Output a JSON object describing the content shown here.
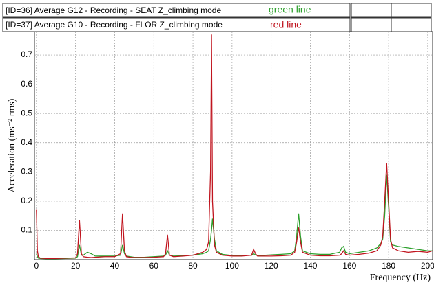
{
  "chart_data": {
    "type": "line",
    "xlabel": "Frequency (Hz)",
    "ylabel": "Acceleration (ms⁻² rms)",
    "grid": true,
    "xlim": [
      -1,
      202.5
    ],
    "xticks": [
      0,
      20,
      40,
      60,
      80,
      100,
      120,
      140,
      160,
      180,
      200
    ],
    "ylim": [
      0,
      0.78
    ],
    "yticks": [
      0.1,
      0.2,
      0.3,
      0.4,
      0.5,
      0.6,
      0.7
    ],
    "x": [
      0,
      0.5,
      1,
      2,
      5,
      10,
      15,
      20,
      21,
      22,
      23,
      24,
      26,
      28,
      30,
      35,
      40,
      43,
      44,
      45,
      46,
      48,
      50,
      55,
      60,
      65,
      66,
      67,
      68,
      70,
      75,
      80,
      85,
      87,
      88,
      89,
      89.5,
      90,
      91,
      92,
      95,
      100,
      105,
      110,
      111,
      112,
      113,
      115,
      120,
      125,
      130,
      132,
      133,
      134,
      135,
      136,
      140,
      145,
      150,
      155,
      156,
      157,
      158,
      160,
      165,
      170,
      174,
      176,
      177,
      178,
      179,
      180,
      181,
      182,
      185,
      190,
      195,
      200,
      202.5
    ],
    "series": [
      {
        "name": "[ID=36] Average G12  - Recording - SEAT Z_climbing mode",
        "line_label": "green line",
        "color": "#2ca02c",
        "values": [
          0.02,
          0.01,
          0.005,
          0.004,
          0.003,
          0.003,
          0.004,
          0.005,
          0.01,
          0.05,
          0.015,
          0.015,
          0.025,
          0.02,
          0.012,
          0.012,
          0.012,
          0.015,
          0.05,
          0.02,
          0.012,
          0.01,
          0.008,
          0.008,
          0.01,
          0.012,
          0.015,
          0.03,
          0.015,
          0.012,
          0.013,
          0.015,
          0.02,
          0.025,
          0.03,
          0.07,
          0.1,
          0.14,
          0.07,
          0.03,
          0.018,
          0.014,
          0.014,
          0.015,
          0.02,
          0.016,
          0.014,
          0.014,
          0.016,
          0.018,
          0.02,
          0.03,
          0.08,
          0.158,
          0.08,
          0.03,
          0.02,
          0.018,
          0.018,
          0.025,
          0.04,
          0.045,
          0.025,
          0.02,
          0.025,
          0.03,
          0.04,
          0.055,
          0.07,
          0.15,
          0.29,
          0.18,
          0.06,
          0.05,
          0.045,
          0.04,
          0.035,
          0.03,
          0.03
        ]
      },
      {
        "name": "[ID=37] Average G10  - Recording - FLOR Z_climbing mode",
        "line_label": "red line",
        "color": "#c0141e",
        "values": [
          0.17,
          0.03,
          0.01,
          0.005,
          0.004,
          0.004,
          0.005,
          0.006,
          0.02,
          0.135,
          0.02,
          0.01,
          0.008,
          0.007,
          0.008,
          0.01,
          0.01,
          0.02,
          0.158,
          0.03,
          0.01,
          0.008,
          0.007,
          0.007,
          0.008,
          0.01,
          0.02,
          0.085,
          0.015,
          0.01,
          0.012,
          0.015,
          0.025,
          0.035,
          0.06,
          0.3,
          0.77,
          0.2,
          0.05,
          0.025,
          0.015,
          0.012,
          0.012,
          0.015,
          0.035,
          0.02,
          0.012,
          0.012,
          0.012,
          0.013,
          0.015,
          0.025,
          0.06,
          0.11,
          0.06,
          0.025,
          0.015,
          0.013,
          0.013,
          0.015,
          0.02,
          0.03,
          0.018,
          0.015,
          0.018,
          0.022,
          0.03,
          0.05,
          0.08,
          0.2,
          0.33,
          0.2,
          0.07,
          0.04,
          0.03,
          0.025,
          0.028,
          0.025,
          0.03
        ]
      }
    ]
  }
}
